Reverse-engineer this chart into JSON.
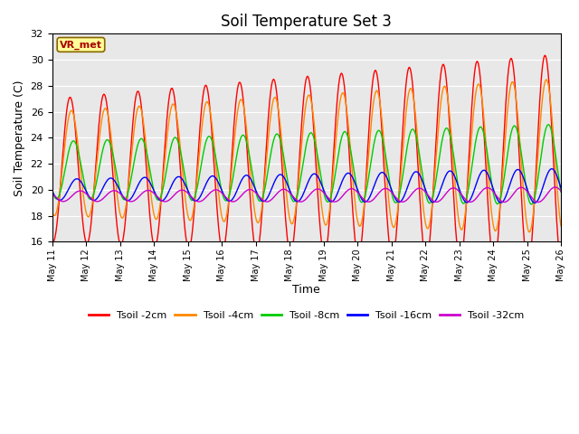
{
  "title": "Soil Temperature Set 3",
  "xlabel": "Time",
  "ylabel": "Soil Temperature (C)",
  "ylim": [
    16,
    32
  ],
  "yticks": [
    16,
    18,
    20,
    22,
    24,
    26,
    28,
    30,
    32
  ],
  "n_days": 15,
  "day_start": 11,
  "legend_labels": [
    "Tsoil -2cm",
    "Tsoil -4cm",
    "Tsoil -8cm",
    "Tsoil -16cm",
    "Tsoil -32cm"
  ],
  "line_colors": [
    "#ff0000",
    "#ff8800",
    "#00cc00",
    "#0000ff",
    "#cc00cc"
  ],
  "background_color": "#e8e8e8",
  "annotation_text": "VR_met",
  "annotation_color": "#aa0000",
  "annotation_bg": "#ffff99",
  "annotation_border": "#886600",
  "fig_bg": "#ffffff"
}
